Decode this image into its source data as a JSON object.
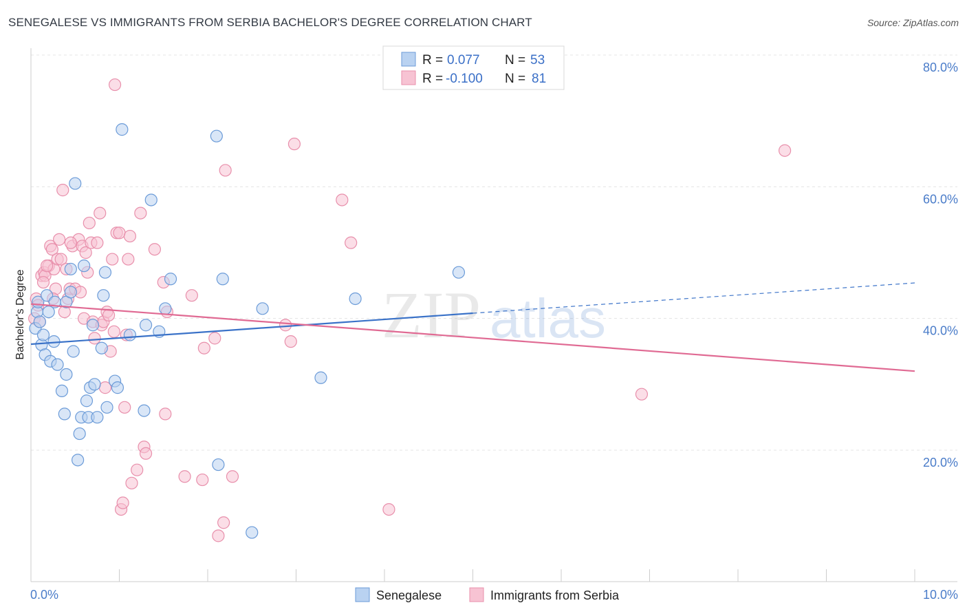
{
  "title": "SENEGALESE VS IMMIGRANTS FROM SERBIA BACHELOR'S DEGREE CORRELATION CHART",
  "source": "Source: ZipAtlas.com",
  "watermark": {
    "zip": "ZIP",
    "atlas": "atlas"
  },
  "colors": {
    "blue_fill": "#b9d2f1",
    "blue_stroke": "#6b9bd8",
    "blue_line": "#3a72c8",
    "pink_fill": "#f7c3d3",
    "pink_stroke": "#e88fab",
    "pink_line": "#e06a93",
    "grid": "#e4e4e4",
    "tick_text": "#4a7cc9"
  },
  "legend": {
    "r_label": "R =",
    "n_label": "N =",
    "rows": [
      {
        "series": "Senegalese",
        "r": "0.077",
        "n": "53"
      },
      {
        "series": "Immigrants from Serbia",
        "r": "-0.100",
        "n": "81"
      }
    ]
  },
  "chart_data": {
    "type": "scatter",
    "title": "SENEGALESE VS IMMIGRANTS FROM SERBIA BACHELOR'S DEGREE CORRELATION CHART",
    "xlabel": "",
    "ylabel": "Bachelor's Degree",
    "xlim": [
      0,
      10
    ],
    "ylim": [
      0,
      82
    ],
    "x_tick_labels": [
      "0.0%",
      "10.0%"
    ],
    "y_ticks": [
      20,
      40,
      60,
      80
    ],
    "y_tick_labels": [
      "20.0%",
      "40.0%",
      "60.0%",
      "80.0%"
    ],
    "legend_position": "bottom-center",
    "series": [
      {
        "name": "Senegalese",
        "color": "#6b9bd8",
        "trend": {
          "x0": 0,
          "y0": 36.1,
          "x1": 5.0,
          "y1": 40.8,
          "dashed_to_x": 10.0,
          "dashed_to_y": 45.4
        },
        "points": [
          [
            0.05,
            38.5
          ],
          [
            0.07,
            41.0
          ],
          [
            0.08,
            42.5
          ],
          [
            0.1,
            39.5
          ],
          [
            0.12,
            36.0
          ],
          [
            0.14,
            37.5
          ],
          [
            0.16,
            34.5
          ],
          [
            0.18,
            43.5
          ],
          [
            0.2,
            41.0
          ],
          [
            0.22,
            33.5
          ],
          [
            0.26,
            36.5
          ],
          [
            0.27,
            42.5
          ],
          [
            0.3,
            33.0
          ],
          [
            0.35,
            29.0
          ],
          [
            0.38,
            25.5
          ],
          [
            0.4,
            31.5
          ],
          [
            0.4,
            42.5
          ],
          [
            0.45,
            47.5
          ],
          [
            0.45,
            44.0
          ],
          [
            0.48,
            35.0
          ],
          [
            0.5,
            60.5
          ],
          [
            0.53,
            18.5
          ],
          [
            0.55,
            22.5
          ],
          [
            0.57,
            25.0
          ],
          [
            0.6,
            48.0
          ],
          [
            0.63,
            27.5
          ],
          [
            0.65,
            25.0
          ],
          [
            0.67,
            29.5
          ],
          [
            0.7,
            39.0
          ],
          [
            0.72,
            30.0
          ],
          [
            0.75,
            25.0
          ],
          [
            0.8,
            35.5
          ],
          [
            0.82,
            43.5
          ],
          [
            0.84,
            47.0
          ],
          [
            0.86,
            26.5
          ],
          [
            0.95,
            30.5
          ],
          [
            0.98,
            29.5
          ],
          [
            1.03,
            68.7
          ],
          [
            1.12,
            37.5
          ],
          [
            1.28,
            26.0
          ],
          [
            1.3,
            39.0
          ],
          [
            1.36,
            58.0
          ],
          [
            1.45,
            38.0
          ],
          [
            1.52,
            41.5
          ],
          [
            1.58,
            46.0
          ],
          [
            2.1,
            67.7
          ],
          [
            2.12,
            17.8
          ],
          [
            2.17,
            46.0
          ],
          [
            2.5,
            7.5
          ],
          [
            2.62,
            41.5
          ],
          [
            3.28,
            31.0
          ],
          [
            3.67,
            43.0
          ],
          [
            4.84,
            47.0
          ]
        ]
      },
      {
        "name": "Immigrants from Serbia",
        "color": "#e88fab",
        "trend": {
          "x0": 0,
          "y0": 42.2,
          "x1": 10.0,
          "y1": 32.0
        },
        "points": [
          [
            0.04,
            40.0
          ],
          [
            0.06,
            43.0
          ],
          [
            0.08,
            42.0
          ],
          [
            0.1,
            39.5
          ],
          [
            0.12,
            46.5
          ],
          [
            0.15,
            47.0
          ],
          [
            0.16,
            46.5
          ],
          [
            0.2,
            48.0
          ],
          [
            0.22,
            51.0
          ],
          [
            0.24,
            50.5
          ],
          [
            0.26,
            47.5
          ],
          [
            0.28,
            44.5
          ],
          [
            0.3,
            49.0
          ],
          [
            0.32,
            52.0
          ],
          [
            0.34,
            49.0
          ],
          [
            0.36,
            59.5
          ],
          [
            0.38,
            41.0
          ],
          [
            0.4,
            47.5
          ],
          [
            0.42,
            43.0
          ],
          [
            0.44,
            44.5
          ],
          [
            0.47,
            51.0
          ],
          [
            0.5,
            44.5
          ],
          [
            0.54,
            52.0
          ],
          [
            0.56,
            44.0
          ],
          [
            0.58,
            51.0
          ],
          [
            0.6,
            40.0
          ],
          [
            0.62,
            50.0
          ],
          [
            0.64,
            47.0
          ],
          [
            0.66,
            54.5
          ],
          [
            0.68,
            51.5
          ],
          [
            0.7,
            39.5
          ],
          [
            0.72,
            37.0
          ],
          [
            0.75,
            51.5
          ],
          [
            0.78,
            56.0
          ],
          [
            0.8,
            39.0
          ],
          [
            0.82,
            39.5
          ],
          [
            0.84,
            29.5
          ],
          [
            0.86,
            41.0
          ],
          [
            0.88,
            40.5
          ],
          [
            0.9,
            35.0
          ],
          [
            0.92,
            49.0
          ],
          [
            0.94,
            38.0
          ],
          [
            0.95,
            75.5
          ],
          [
            0.97,
            53.0
          ],
          [
            1.0,
            53.0
          ],
          [
            1.02,
            11.0
          ],
          [
            1.04,
            12.0
          ],
          [
            1.06,
            26.5
          ],
          [
            1.08,
            37.5
          ],
          [
            1.1,
            49.0
          ],
          [
            1.12,
            52.5
          ],
          [
            1.14,
            15.0
          ],
          [
            1.2,
            17.0
          ],
          [
            1.24,
            56.0
          ],
          [
            1.28,
            20.5
          ],
          [
            1.3,
            19.5
          ],
          [
            1.4,
            50.5
          ],
          [
            1.5,
            45.5
          ],
          [
            1.52,
            25.5
          ],
          [
            1.54,
            41.0
          ],
          [
            1.74,
            16.0
          ],
          [
            1.82,
            43.5
          ],
          [
            1.94,
            15.5
          ],
          [
            1.96,
            35.5
          ],
          [
            2.08,
            37.0
          ],
          [
            2.12,
            7.0
          ],
          [
            2.18,
            9.0
          ],
          [
            2.2,
            62.5
          ],
          [
            2.28,
            16.0
          ],
          [
            2.88,
            39.0
          ],
          [
            2.94,
            36.5
          ],
          [
            2.98,
            66.5
          ],
          [
            3.52,
            58.0
          ],
          [
            3.62,
            51.5
          ],
          [
            4.05,
            11.0
          ],
          [
            6.91,
            28.5
          ],
          [
            8.53,
            65.5
          ],
          [
            0.14,
            45.5
          ],
          [
            0.25,
            43.0
          ],
          [
            0.18,
            48.0
          ],
          [
            0.45,
            51.5
          ]
        ]
      }
    ]
  },
  "bottom_legend": [
    {
      "label": "Senegalese"
    },
    {
      "label": "Immigrants from Serbia"
    }
  ]
}
